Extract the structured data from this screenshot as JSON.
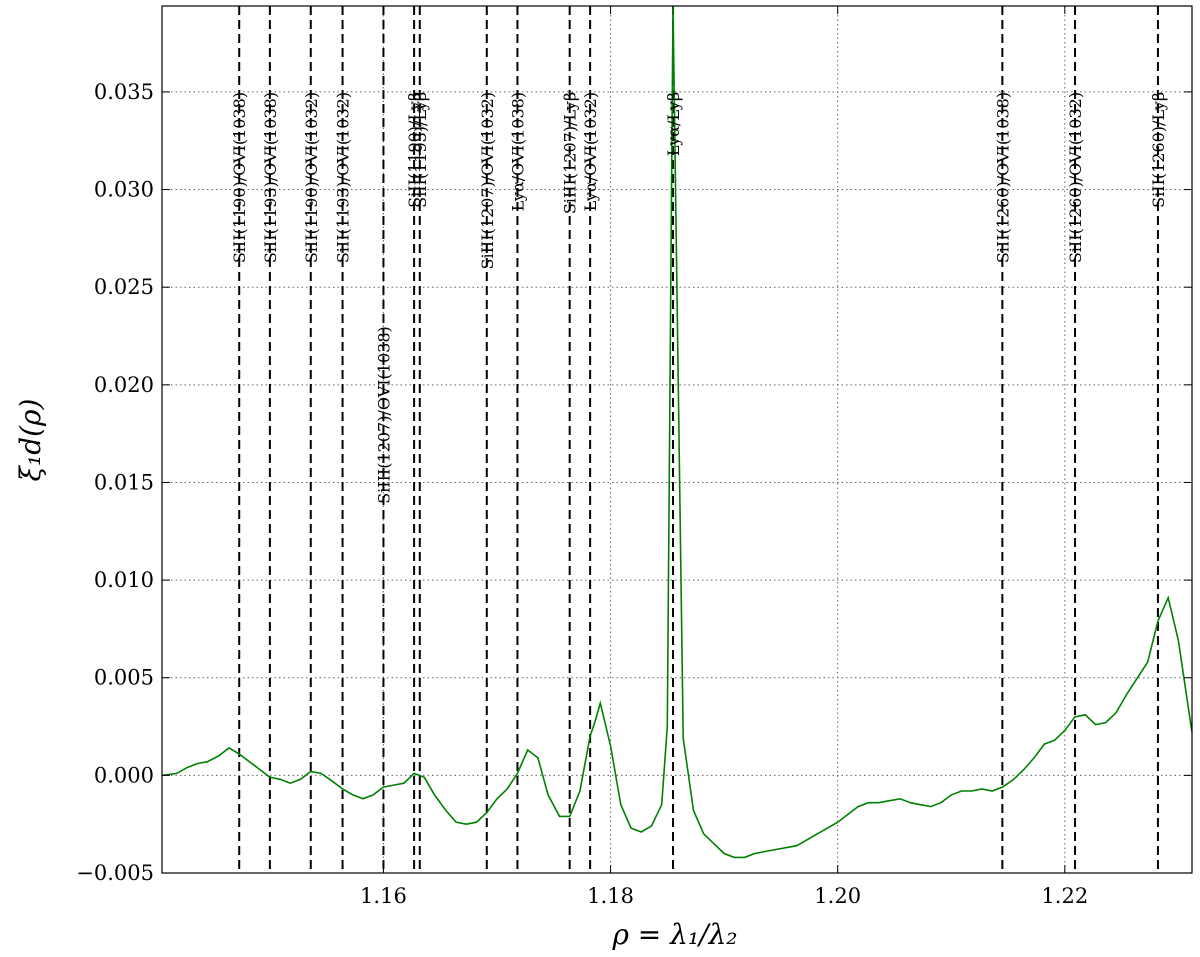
{
  "chart_data": {
    "type": "line",
    "title": "",
    "xlabel": "ρ = λ₁/λ₂",
    "ylabel": "ξ₁d(ρ)",
    "xlim": [
      1.1405,
      1.2312
    ],
    "ylim": [
      -0.005,
      0.0394
    ],
    "xticks": [
      1.16,
      1.18,
      1.2,
      1.22
    ],
    "xtick_labels": [
      "1.16",
      "1.18",
      "1.20",
      "1.22"
    ],
    "yticks": [
      -0.005,
      0.0,
      0.005,
      0.01,
      0.015,
      0.02,
      0.025,
      0.03,
      0.035
    ],
    "ytick_labels": [
      "−0.005",
      "0.000",
      "0.005",
      "0.010",
      "0.015",
      "0.020",
      "0.025",
      "0.030",
      "0.035"
    ],
    "grid": true,
    "series_color": "#008000",
    "series": [
      {
        "x": [
          1.1405,
          1.1418,
          1.1427,
          1.1436,
          1.1445,
          1.1455,
          1.1464,
          1.1473,
          1.1482,
          1.1491,
          1.15,
          1.1509,
          1.1518,
          1.1527,
          1.1536,
          1.1545,
          1.1555,
          1.1564,
          1.1573,
          1.1582,
          1.1591,
          1.16,
          1.1609,
          1.1618,
          1.1627,
          1.1636,
          1.1645,
          1.1655,
          1.1664,
          1.1673,
          1.1682,
          1.1691,
          1.17,
          1.1709,
          1.1718,
          1.1727,
          1.1736,
          1.1745,
          1.1755,
          1.1764,
          1.1773,
          1.1782,
          1.1786,
          1.1791,
          1.18,
          1.1809,
          1.1818,
          1.1827,
          1.1836,
          1.1845,
          1.185,
          1.1855,
          1.1864,
          1.1873,
          1.1882,
          1.1891,
          1.19,
          1.1909,
          1.1918,
          1.1927,
          1.1936,
          1.1945,
          1.1955,
          1.1964,
          1.1973,
          1.1982,
          1.1991,
          1.2,
          1.2009,
          1.2018,
          1.2027,
          1.2036,
          1.2045,
          1.2055,
          1.2064,
          1.2073,
          1.2082,
          1.2091,
          1.21,
          1.2109,
          1.2118,
          1.2127,
          1.2136,
          1.2145,
          1.2155,
          1.2164,
          1.2173,
          1.2182,
          1.2191,
          1.22,
          1.2209,
          1.2218,
          1.2227,
          1.2236,
          1.2245,
          1.2255,
          1.2264,
          1.2273,
          1.2282,
          1.2291,
          1.23,
          1.2312
        ],
        "values": [
          0.0,
          0.0001,
          0.0004,
          0.0006,
          0.0007,
          0.001,
          0.0014,
          0.0011,
          0.0007,
          0.0003,
          -0.0001,
          -0.0002,
          -0.0004,
          -0.0002,
          0.0002,
          0.0001,
          -0.0003,
          -0.0007,
          -0.001,
          -0.0012,
          -0.001,
          -0.0006,
          -0.0005,
          -0.0004,
          0.0001,
          -0.0001,
          -0.001,
          -0.0018,
          -0.0024,
          -0.0025,
          -0.0024,
          -0.0019,
          -0.0012,
          -0.0007,
          0.0001,
          0.0013,
          0.0009,
          -0.001,
          -0.0021,
          -0.0021,
          -0.0008,
          0.002,
          0.0027,
          0.0037,
          0.0015,
          -0.0015,
          -0.0027,
          -0.0029,
          -0.0026,
          -0.0015,
          0.0025,
          0.0394,
          0.0019,
          -0.0018,
          -0.003,
          -0.0035,
          -0.004,
          -0.0042,
          -0.0042,
          -0.004,
          -0.0039,
          -0.0038,
          -0.0037,
          -0.0036,
          -0.0033,
          -0.003,
          -0.0027,
          -0.0024,
          -0.002,
          -0.0016,
          -0.0014,
          -0.0014,
          -0.0013,
          -0.0012,
          -0.0014,
          -0.0015,
          -0.0016,
          -0.0014,
          -0.001,
          -0.0008,
          -0.0008,
          -0.0007,
          -0.0008,
          -0.0006,
          -0.0002,
          0.0003,
          0.0009,
          0.0016,
          0.0018,
          0.0023,
          0.003,
          0.0031,
          0.0026,
          0.0027,
          0.0032,
          0.0042,
          0.005,
          0.0058,
          0.0079,
          0.0091,
          0.0069,
          0.0022
        ]
      }
    ],
    "vlines": [
      {
        "x": 1.1473,
        "label": "SiII(1190)/OVI(1038)",
        "label_y": 0.035
      },
      {
        "x": 1.15,
        "label": "SiII(1193)/OVI(1038)",
        "label_y": 0.035
      },
      {
        "x": 1.1536,
        "label": "SiII(1190)/OVI(1032)",
        "label_y": 0.035
      },
      {
        "x": 1.1564,
        "label": "SiII(1193)/OVI(1032)",
        "label_y": 0.035
      },
      {
        "x": 1.16,
        "label": "SiIII(1207)/OVI(1038)",
        "label_y": 0.023
      },
      {
        "x": 1.1627,
        "label": "SiII(1190)/Lyβ",
        "label_y": 0.035
      },
      {
        "x": 1.1632,
        "label": "SiII(1193)/Lyβ",
        "label_y": 0.035
      },
      {
        "x": 1.1691,
        "label": "SiIII(1207)/OVI(1032)",
        "label_y": 0.035
      },
      {
        "x": 1.1718,
        "label": "Lyα/OVI(1038)",
        "label_y": 0.035
      },
      {
        "x": 1.1764,
        "label": "SiIII(1207)/Lyβ",
        "label_y": 0.035
      },
      {
        "x": 1.1782,
        "label": "Lyα/OVI(1032)",
        "label_y": 0.035
      },
      {
        "x": 1.1855,
        "label": "Lyα/Lyβ",
        "label_y": 0.035
      },
      {
        "x": 1.2145,
        "label": "SiII(1260)/OVI(1038)",
        "label_y": 0.035
      },
      {
        "x": 1.2209,
        "label": "SiII(1260)/OVI(1032)",
        "label_y": 0.035
      },
      {
        "x": 1.2282,
        "label": "SiII(1260)/Lyβ",
        "label_y": 0.035
      }
    ]
  }
}
